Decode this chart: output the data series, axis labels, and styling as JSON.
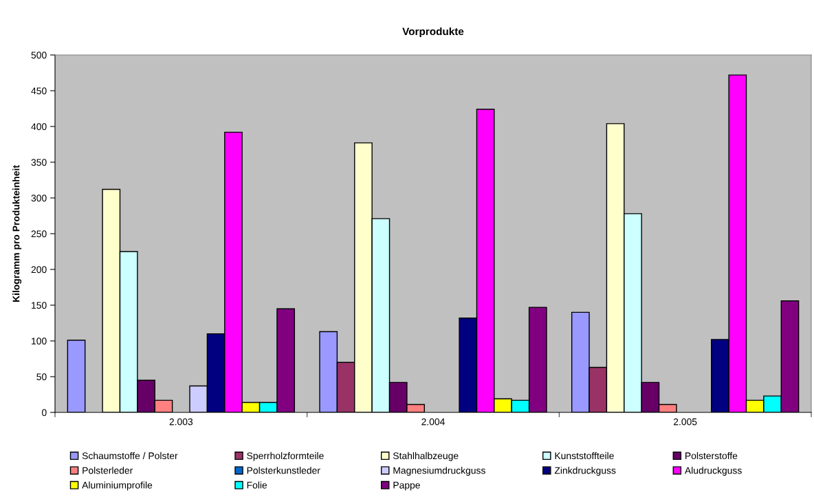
{
  "chart_data": {
    "type": "bar",
    "title": "Vorprodukte",
    "ylabel": "Kilogramm pro Produkteinheit",
    "categories": [
      "2.003",
      "2.004",
      "2.005"
    ],
    "series": [
      {
        "name": "Schaumstoffe / Polster",
        "color": "#9999ff",
        "values": [
          101,
          113,
          140
        ]
      },
      {
        "name": "Sperrholzformteile",
        "color": "#993366",
        "values": [
          null,
          70,
          63
        ]
      },
      {
        "name": "Stahlhalbzeuge",
        "color": "#ffffcc",
        "values": [
          312,
          377,
          404
        ]
      },
      {
        "name": "Kunststoffteile",
        "color": "#ccffff",
        "values": [
          225,
          271,
          278
        ]
      },
      {
        "name": "Polsterstoffe",
        "color": "#660066",
        "values": [
          45,
          42,
          42
        ]
      },
      {
        "name": "Polsterleder",
        "color": "#ff8080",
        "values": [
          17,
          11,
          11
        ]
      },
      {
        "name": "Polsterkunstleder",
        "color": "#0066cc",
        "values": [
          null,
          null,
          null
        ]
      },
      {
        "name": "Magnesiumdruckguss",
        "color": "#ccccff",
        "values": [
          37,
          null,
          null
        ]
      },
      {
        "name": "Zinkdruckguss",
        "color": "#000080",
        "values": [
          110,
          132,
          102
        ]
      },
      {
        "name": "Aludruckguss",
        "color": "#ff00ff",
        "values": [
          392,
          424,
          472
        ]
      },
      {
        "name": "Aluminiumprofile",
        "color": "#ffff00",
        "values": [
          14,
          19,
          17
        ]
      },
      {
        "name": "Folie",
        "color": "#00ffff",
        "values": [
          14,
          17,
          23
        ]
      },
      {
        "name": "Pappe",
        "color": "#800080",
        "values": [
          145,
          147,
          156
        ]
      }
    ],
    "ylim": [
      0,
      500
    ],
    "yticks": [
      0,
      50,
      100,
      150,
      200,
      250,
      300,
      350,
      400,
      450,
      500
    ],
    "grid": false,
    "legend": "bottom"
  }
}
